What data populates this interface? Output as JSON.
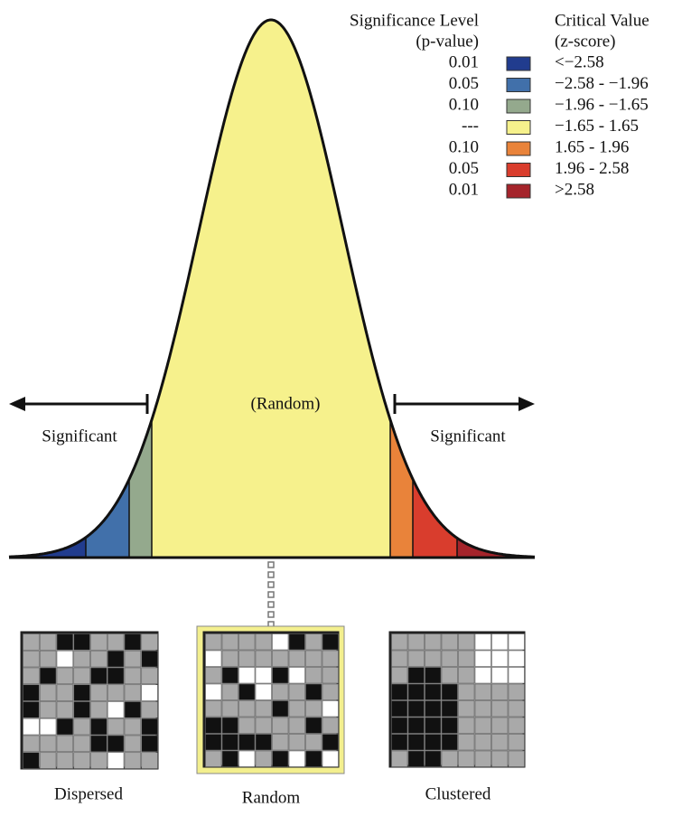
{
  "legend": {
    "significance_header": "Significance Level",
    "significance_subheader": "(p-value)",
    "critical_header": "Critical Value",
    "critical_subheader": "(z-score)",
    "rows": [
      {
        "p_value": "0.01",
        "color": "#213c8e",
        "z_score": "<−2.58"
      },
      {
        "p_value": "0.05",
        "color": "#4170aa",
        "z_score": "−2.58 - −1.96"
      },
      {
        "p_value": "0.10",
        "color": "#94a98d",
        "z_score": "−1.96 - −1.65"
      },
      {
        "p_value": "---",
        "color": "#f6f18c",
        "z_score": "−1.65 - 1.65"
      },
      {
        "p_value": "0.10",
        "color": "#e9833a",
        "z_score": "1.65 - 1.96"
      },
      {
        "p_value": "0.05",
        "color": "#d93d2d",
        "z_score": "1.96 - 2.58"
      },
      {
        "p_value": "0.01",
        "color": "#a5242b",
        "z_score": ">2.58"
      }
    ]
  },
  "curve": {
    "center_label": "(Random)",
    "left_label": "Significant",
    "right_label": "Significant"
  },
  "patterns": [
    {
      "label": "Dispersed"
    },
    {
      "label": "Random"
    },
    {
      "label": "Clustered"
    }
  ]
}
